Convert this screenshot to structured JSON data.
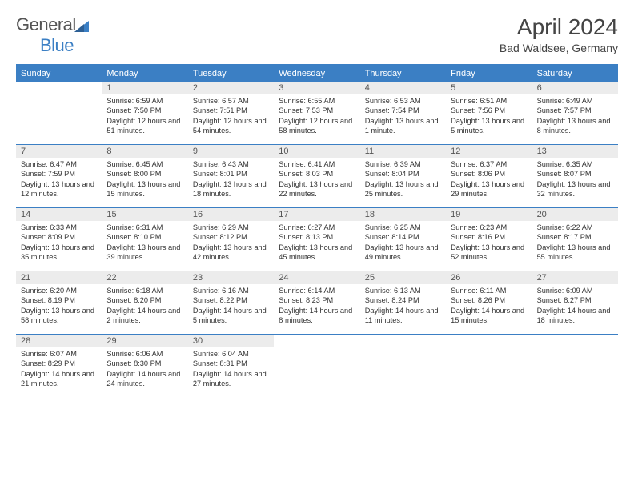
{
  "logo": {
    "word1": "General",
    "word2": "Blue"
  },
  "title": "April 2024",
  "location": "Bad Waldsee, Germany",
  "colors": {
    "accent": "#3b7fc4",
    "header_bg": "#3b7fc4",
    "header_text": "#ffffff",
    "daynum_bg": "#ececec",
    "text": "#333333",
    "background": "#ffffff"
  },
  "weekdays": [
    "Sunday",
    "Monday",
    "Tuesday",
    "Wednesday",
    "Thursday",
    "Friday",
    "Saturday"
  ],
  "weeks": [
    [
      {
        "n": "",
        "sr": "",
        "ss": "",
        "dl": ""
      },
      {
        "n": "1",
        "sr": "6:59 AM",
        "ss": "7:50 PM",
        "dl": "12 hours and 51 minutes."
      },
      {
        "n": "2",
        "sr": "6:57 AM",
        "ss": "7:51 PM",
        "dl": "12 hours and 54 minutes."
      },
      {
        "n": "3",
        "sr": "6:55 AM",
        "ss": "7:53 PM",
        "dl": "12 hours and 58 minutes."
      },
      {
        "n": "4",
        "sr": "6:53 AM",
        "ss": "7:54 PM",
        "dl": "13 hours and 1 minute."
      },
      {
        "n": "5",
        "sr": "6:51 AM",
        "ss": "7:56 PM",
        "dl": "13 hours and 5 minutes."
      },
      {
        "n": "6",
        "sr": "6:49 AM",
        "ss": "7:57 PM",
        "dl": "13 hours and 8 minutes."
      }
    ],
    [
      {
        "n": "7",
        "sr": "6:47 AM",
        "ss": "7:59 PM",
        "dl": "13 hours and 12 minutes."
      },
      {
        "n": "8",
        "sr": "6:45 AM",
        "ss": "8:00 PM",
        "dl": "13 hours and 15 minutes."
      },
      {
        "n": "9",
        "sr": "6:43 AM",
        "ss": "8:01 PM",
        "dl": "13 hours and 18 minutes."
      },
      {
        "n": "10",
        "sr": "6:41 AM",
        "ss": "8:03 PM",
        "dl": "13 hours and 22 minutes."
      },
      {
        "n": "11",
        "sr": "6:39 AM",
        "ss": "8:04 PM",
        "dl": "13 hours and 25 minutes."
      },
      {
        "n": "12",
        "sr": "6:37 AM",
        "ss": "8:06 PM",
        "dl": "13 hours and 29 minutes."
      },
      {
        "n": "13",
        "sr": "6:35 AM",
        "ss": "8:07 PM",
        "dl": "13 hours and 32 minutes."
      }
    ],
    [
      {
        "n": "14",
        "sr": "6:33 AM",
        "ss": "8:09 PM",
        "dl": "13 hours and 35 minutes."
      },
      {
        "n": "15",
        "sr": "6:31 AM",
        "ss": "8:10 PM",
        "dl": "13 hours and 39 minutes."
      },
      {
        "n": "16",
        "sr": "6:29 AM",
        "ss": "8:12 PM",
        "dl": "13 hours and 42 minutes."
      },
      {
        "n": "17",
        "sr": "6:27 AM",
        "ss": "8:13 PM",
        "dl": "13 hours and 45 minutes."
      },
      {
        "n": "18",
        "sr": "6:25 AM",
        "ss": "8:14 PM",
        "dl": "13 hours and 49 minutes."
      },
      {
        "n": "19",
        "sr": "6:23 AM",
        "ss": "8:16 PM",
        "dl": "13 hours and 52 minutes."
      },
      {
        "n": "20",
        "sr": "6:22 AM",
        "ss": "8:17 PM",
        "dl": "13 hours and 55 minutes."
      }
    ],
    [
      {
        "n": "21",
        "sr": "6:20 AM",
        "ss": "8:19 PM",
        "dl": "13 hours and 58 minutes."
      },
      {
        "n": "22",
        "sr": "6:18 AM",
        "ss": "8:20 PM",
        "dl": "14 hours and 2 minutes."
      },
      {
        "n": "23",
        "sr": "6:16 AM",
        "ss": "8:22 PM",
        "dl": "14 hours and 5 minutes."
      },
      {
        "n": "24",
        "sr": "6:14 AM",
        "ss": "8:23 PM",
        "dl": "14 hours and 8 minutes."
      },
      {
        "n": "25",
        "sr": "6:13 AM",
        "ss": "8:24 PM",
        "dl": "14 hours and 11 minutes."
      },
      {
        "n": "26",
        "sr": "6:11 AM",
        "ss": "8:26 PM",
        "dl": "14 hours and 15 minutes."
      },
      {
        "n": "27",
        "sr": "6:09 AM",
        "ss": "8:27 PM",
        "dl": "14 hours and 18 minutes."
      }
    ],
    [
      {
        "n": "28",
        "sr": "6:07 AM",
        "ss": "8:29 PM",
        "dl": "14 hours and 21 minutes."
      },
      {
        "n": "29",
        "sr": "6:06 AM",
        "ss": "8:30 PM",
        "dl": "14 hours and 24 minutes."
      },
      {
        "n": "30",
        "sr": "6:04 AM",
        "ss": "8:31 PM",
        "dl": "14 hours and 27 minutes."
      },
      {
        "n": "",
        "sr": "",
        "ss": "",
        "dl": ""
      },
      {
        "n": "",
        "sr": "",
        "ss": "",
        "dl": ""
      },
      {
        "n": "",
        "sr": "",
        "ss": "",
        "dl": ""
      },
      {
        "n": "",
        "sr": "",
        "ss": "",
        "dl": ""
      }
    ]
  ],
  "labels": {
    "sunrise": "Sunrise:",
    "sunset": "Sunset:",
    "daylight": "Daylight:"
  }
}
